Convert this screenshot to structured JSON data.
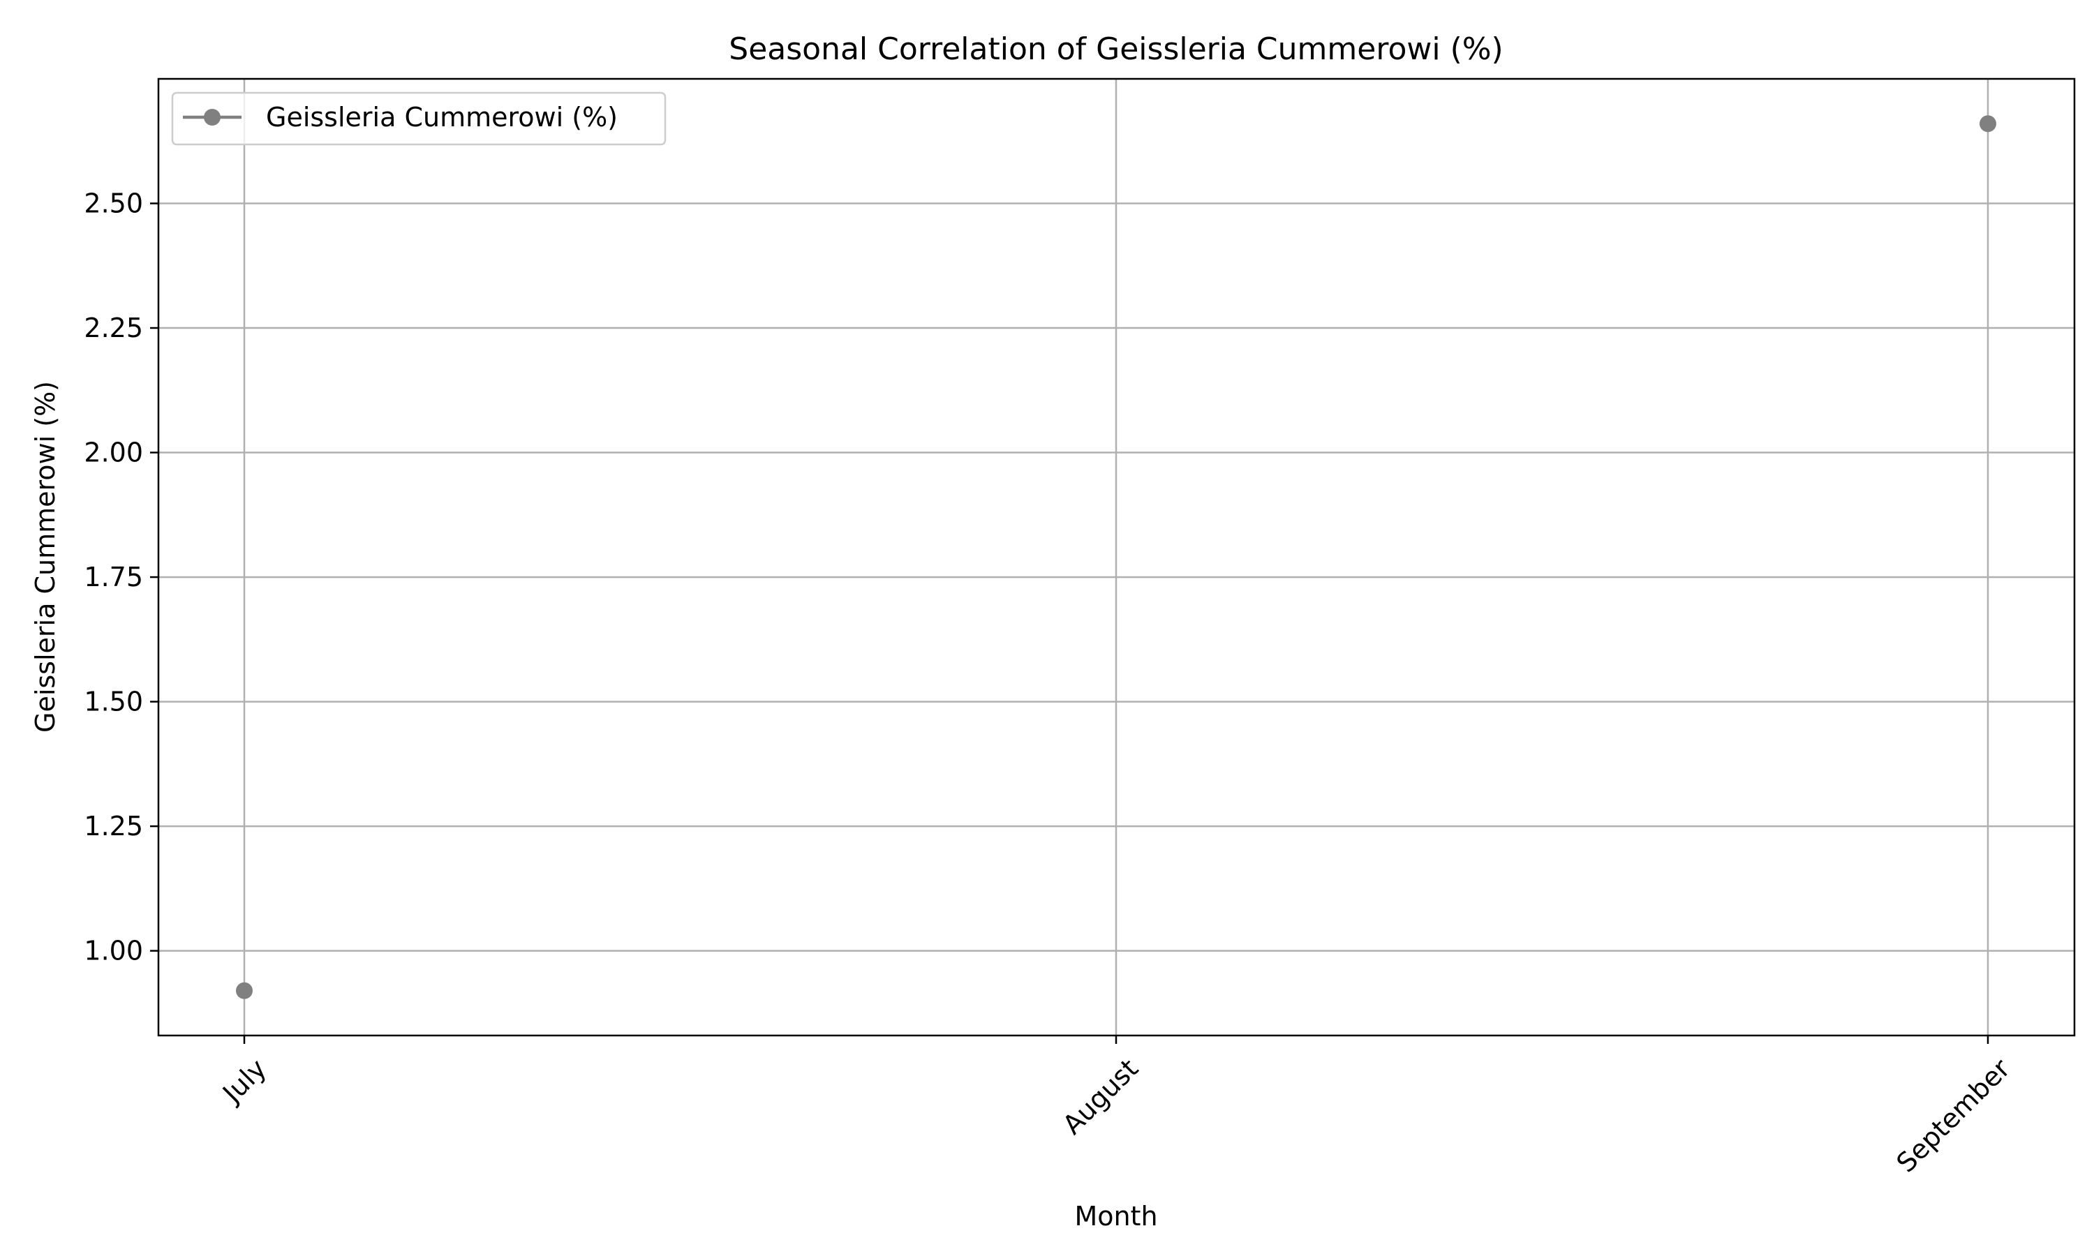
{
  "chart_data": {
    "type": "line",
    "title": "Seasonal Correlation of Geissleria Cummerowi (%)",
    "xlabel": "Month",
    "ylabel": "Geissleria Cummerowi (%)",
    "categories": [
      "July",
      "August",
      "September"
    ],
    "series": [
      {
        "name": "Geissleria Cummerowi (%)",
        "color": "#808080",
        "values": [
          0.92,
          null,
          2.66
        ]
      }
    ],
    "ylim": [
      0.83,
      2.75
    ],
    "yticks": [
      1.0,
      1.25,
      1.5,
      1.75,
      2.0,
      2.25,
      2.5
    ],
    "ytick_labels": [
      "1.00",
      "1.25",
      "1.50",
      "1.75",
      "2.00",
      "2.25",
      "2.50"
    ],
    "grid": true,
    "legend": "top-left",
    "xtick_rotation": 45
  }
}
